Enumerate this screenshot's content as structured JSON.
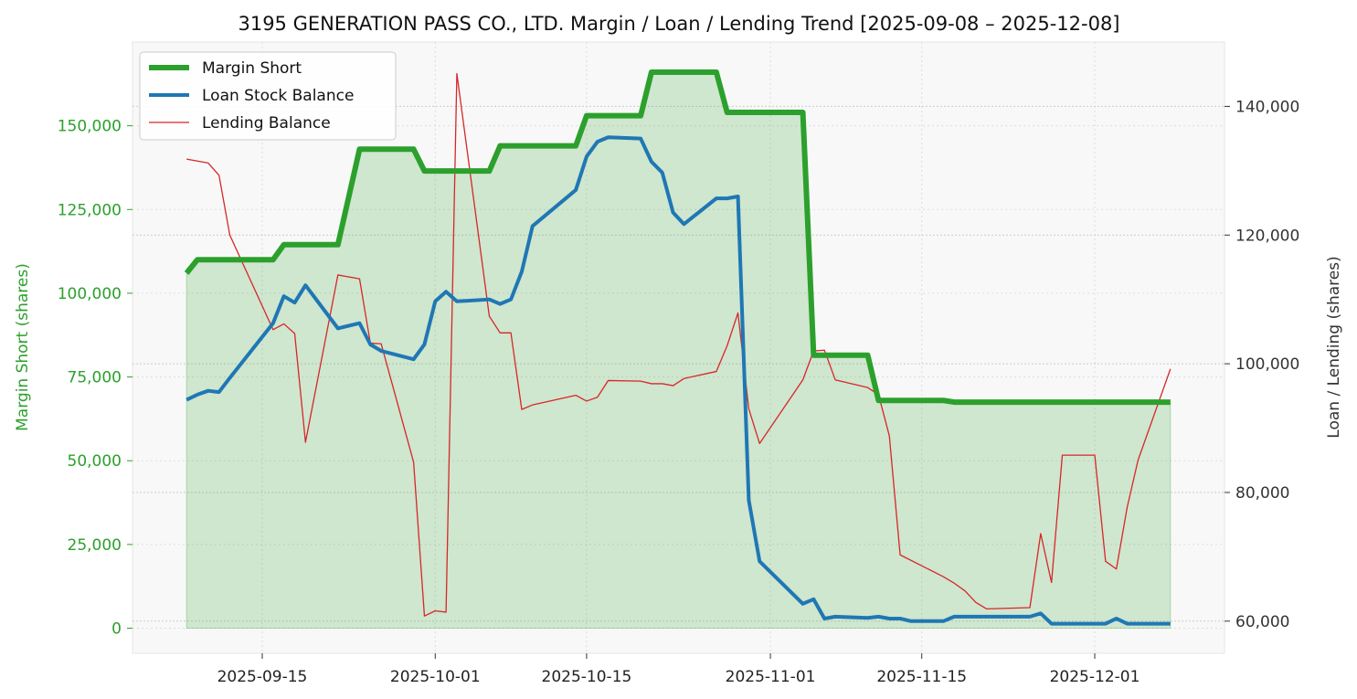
{
  "chart_data": {
    "type": "line",
    "title": "3195 GENERATION PASS CO., LTD. Margin / Loan / Lending Trend [2025-09-08 – 2025-12-08]",
    "ylabel_left": "Margin Short (shares)",
    "ylabel_right": "Loan / Lending (shares)",
    "xlabel": "",
    "x_ticks": [
      "2025-09-15",
      "2025-10-01",
      "2025-10-15",
      "2025-11-01",
      "2025-11-15",
      "2025-12-01"
    ],
    "y_left_ticks": [
      "0",
      "25,000",
      "50,000",
      "75,000",
      "100,000",
      "125,000",
      "150,000"
    ],
    "y_right_ticks": [
      "60,000",
      "80,000",
      "100,000",
      "120,000",
      "140,000"
    ],
    "y_left_lim": [
      -7500,
      175000
    ],
    "y_right_lim": [
      55000,
      150000
    ],
    "x_lim": [
      "2025-09-03",
      "2025-12-13"
    ],
    "grid": true,
    "legend_position": "top-left",
    "colors": {
      "margin": "#2ca02c",
      "loan": "#1f77b4",
      "lending": "#d62728",
      "left_axis": "#2ca02c",
      "right_axis": "#333333",
      "background": "#f8f8f8"
    },
    "series": [
      {
        "name": "Margin Short",
        "axis": "left",
        "points": [
          [
            "2025-09-08",
            106000
          ],
          [
            "2025-09-09",
            110000
          ],
          [
            "2025-09-10",
            110000
          ],
          [
            "2025-09-11",
            110000
          ],
          [
            "2025-09-12",
            110000
          ],
          [
            "2025-09-16",
            110000
          ],
          [
            "2025-09-17",
            114500
          ],
          [
            "2025-09-18",
            114500
          ],
          [
            "2025-09-19",
            114500
          ],
          [
            "2025-09-22",
            114500
          ],
          [
            "2025-09-24",
            143000
          ],
          [
            "2025-09-26",
            143000
          ],
          [
            "2025-09-29",
            143000
          ],
          [
            "2025-09-30",
            136500
          ],
          [
            "2025-10-01",
            136500
          ],
          [
            "2025-10-02",
            136500
          ],
          [
            "2025-10-06",
            136500
          ],
          [
            "2025-10-07",
            144000
          ],
          [
            "2025-10-08",
            144000
          ],
          [
            "2025-10-09",
            144000
          ],
          [
            "2025-10-14",
            144000
          ],
          [
            "2025-10-15",
            153000
          ],
          [
            "2025-10-16",
            153000
          ],
          [
            "2025-10-17",
            153000
          ],
          [
            "2025-10-20",
            153000
          ],
          [
            "2025-10-21",
            166000
          ],
          [
            "2025-10-22",
            166000
          ],
          [
            "2025-10-23",
            166000
          ],
          [
            "2025-10-24",
            166000
          ],
          [
            "2025-10-27",
            166000
          ],
          [
            "2025-10-28",
            154000
          ],
          [
            "2025-10-29",
            154000
          ],
          [
            "2025-10-30",
            154000
          ],
          [
            "2025-10-31",
            154000
          ],
          [
            "2025-11-04",
            154000
          ],
          [
            "2025-11-05",
            81500
          ],
          [
            "2025-11-06",
            81500
          ],
          [
            "2025-11-07",
            81500
          ],
          [
            "2025-11-10",
            81500
          ],
          [
            "2025-11-11",
            68000
          ],
          [
            "2025-11-12",
            68000
          ],
          [
            "2025-11-13",
            68000
          ],
          [
            "2025-11-14",
            68000
          ],
          [
            "2025-11-17",
            68000
          ],
          [
            "2025-11-18",
            67500
          ],
          [
            "2025-11-19",
            67500
          ],
          [
            "2025-11-20",
            67500
          ],
          [
            "2025-11-21",
            67500
          ],
          [
            "2025-11-25",
            67500
          ],
          [
            "2025-11-26",
            67500
          ],
          [
            "2025-11-27",
            67500
          ],
          [
            "2025-11-28",
            67500
          ],
          [
            "2025-12-01",
            67500
          ],
          [
            "2025-12-02",
            67500
          ],
          [
            "2025-12-03",
            67500
          ],
          [
            "2025-12-04",
            67500
          ],
          [
            "2025-12-05",
            67500
          ],
          [
            "2025-12-08",
            67500
          ]
        ]
      },
      {
        "name": "Loan Stock Balance",
        "axis": "right",
        "points": [
          [
            "2025-09-08",
            94400
          ],
          [
            "2025-09-09",
            95200
          ],
          [
            "2025-09-10",
            95800
          ],
          [
            "2025-09-11",
            95600
          ],
          [
            "2025-09-12",
            97800
          ],
          [
            "2025-09-16",
            106300
          ],
          [
            "2025-09-17",
            110500
          ],
          [
            "2025-09-18",
            109500
          ],
          [
            "2025-09-19",
            112200
          ],
          [
            "2025-09-22",
            105500
          ],
          [
            "2025-09-24",
            106300
          ],
          [
            "2025-09-25",
            103000
          ],
          [
            "2025-09-26",
            102000
          ],
          [
            "2025-09-29",
            100700
          ],
          [
            "2025-09-30",
            103000
          ],
          [
            "2025-10-01",
            109700
          ],
          [
            "2025-10-02",
            111200
          ],
          [
            "2025-10-03",
            109700
          ],
          [
            "2025-10-06",
            110000
          ],
          [
            "2025-10-07",
            109300
          ],
          [
            "2025-10-08",
            110000
          ],
          [
            "2025-10-09",
            114300
          ],
          [
            "2025-10-10",
            121400
          ],
          [
            "2025-10-14",
            127000
          ],
          [
            "2025-10-15",
            132200
          ],
          [
            "2025-10-16",
            134500
          ],
          [
            "2025-10-17",
            135200
          ],
          [
            "2025-10-20",
            135000
          ],
          [
            "2025-10-21",
            131400
          ],
          [
            "2025-10-22",
            129700
          ],
          [
            "2025-10-23",
            123500
          ],
          [
            "2025-10-24",
            121700
          ],
          [
            "2025-10-27",
            125700
          ],
          [
            "2025-10-28",
            125700
          ],
          [
            "2025-10-29",
            126000
          ],
          [
            "2025-10-30",
            78800
          ],
          [
            "2025-10-31",
            69300
          ],
          [
            "2025-11-04",
            62700
          ],
          [
            "2025-11-05",
            63400
          ],
          [
            "2025-11-06",
            60400
          ],
          [
            "2025-11-07",
            60700
          ],
          [
            "2025-11-10",
            60500
          ],
          [
            "2025-11-11",
            60700
          ],
          [
            "2025-11-12",
            60400
          ],
          [
            "2025-11-13",
            60400
          ],
          [
            "2025-11-14",
            60000
          ],
          [
            "2025-11-17",
            60000
          ],
          [
            "2025-11-18",
            60700
          ],
          [
            "2025-11-19",
            60700
          ],
          [
            "2025-11-20",
            60700
          ],
          [
            "2025-11-21",
            60700
          ],
          [
            "2025-11-25",
            60700
          ],
          [
            "2025-11-26",
            61200
          ],
          [
            "2025-11-27",
            59600
          ],
          [
            "2025-11-28",
            59600
          ],
          [
            "2025-12-01",
            59600
          ],
          [
            "2025-12-02",
            59600
          ],
          [
            "2025-12-03",
            60400
          ],
          [
            "2025-12-04",
            59600
          ],
          [
            "2025-12-05",
            59600
          ],
          [
            "2025-12-08",
            59600
          ]
        ]
      },
      {
        "name": "Lending Balance",
        "axis": "right",
        "points": [
          [
            "2025-09-08",
            131800
          ],
          [
            "2025-09-10",
            131200
          ],
          [
            "2025-09-11",
            129300
          ],
          [
            "2025-09-12",
            120000
          ],
          [
            "2025-09-16",
            105300
          ],
          [
            "2025-09-17",
            106200
          ],
          [
            "2025-09-18",
            104700
          ],
          [
            "2025-09-19",
            87800
          ],
          [
            "2025-09-22",
            113800
          ],
          [
            "2025-09-24",
            113200
          ],
          [
            "2025-09-25",
            103200
          ],
          [
            "2025-09-26",
            103100
          ],
          [
            "2025-09-29",
            84700
          ],
          [
            "2025-09-30",
            60800
          ],
          [
            "2025-10-01",
            61600
          ],
          [
            "2025-10-02",
            61400
          ],
          [
            "2025-10-03",
            145100
          ],
          [
            "2025-10-06",
            107400
          ],
          [
            "2025-10-07",
            104800
          ],
          [
            "2025-10-08",
            104800
          ],
          [
            "2025-10-09",
            92900
          ],
          [
            "2025-10-10",
            93600
          ],
          [
            "2025-10-14",
            95100
          ],
          [
            "2025-10-15",
            94200
          ],
          [
            "2025-10-16",
            94800
          ],
          [
            "2025-10-17",
            97400
          ],
          [
            "2025-10-20",
            97300
          ],
          [
            "2025-10-21",
            96900
          ],
          [
            "2025-10-22",
            96900
          ],
          [
            "2025-10-23",
            96600
          ],
          [
            "2025-10-24",
            97700
          ],
          [
            "2025-10-27",
            98800
          ],
          [
            "2025-10-28",
            102800
          ],
          [
            "2025-10-29",
            107900
          ],
          [
            "2025-10-30",
            93000
          ],
          [
            "2025-10-31",
            87600
          ],
          [
            "2025-11-04",
            97500
          ],
          [
            "2025-11-05",
            102000
          ],
          [
            "2025-11-06",
            102100
          ],
          [
            "2025-11-07",
            97500
          ],
          [
            "2025-11-10",
            96300
          ],
          [
            "2025-11-11",
            95200
          ],
          [
            "2025-11-12",
            88800
          ],
          [
            "2025-11-13",
            70300
          ],
          [
            "2025-11-17",
            66900
          ],
          [
            "2025-11-18",
            65900
          ],
          [
            "2025-11-19",
            64700
          ],
          [
            "2025-11-20",
            62900
          ],
          [
            "2025-11-21",
            61900
          ],
          [
            "2025-11-25",
            62100
          ],
          [
            "2025-11-26",
            73600
          ],
          [
            "2025-11-27",
            66000
          ],
          [
            "2025-11-28",
            85800
          ],
          [
            "2025-12-01",
            85800
          ],
          [
            "2025-12-02",
            69300
          ],
          [
            "2025-12-03",
            68100
          ],
          [
            "2025-12-04",
            77700
          ],
          [
            "2025-12-05",
            85000
          ],
          [
            "2025-12-08",
            99200
          ]
        ]
      }
    ]
  }
}
